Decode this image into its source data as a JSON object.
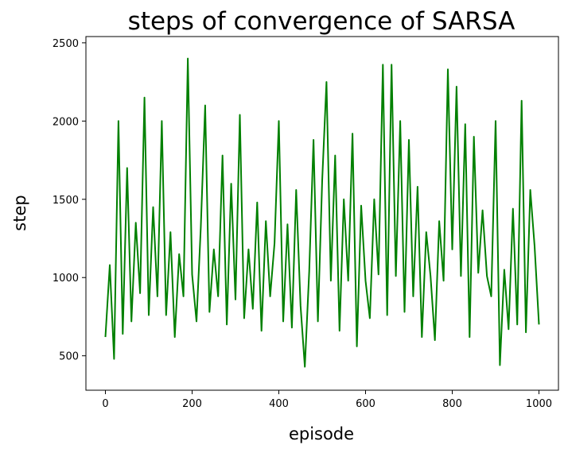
{
  "chart_data": {
    "type": "line",
    "title": "steps of convergence of SARSA",
    "xlabel": "episode",
    "ylabel": "step",
    "xlim": [
      -45,
      1045
    ],
    "ylim": [
      280,
      2540
    ],
    "xticks": [
      0,
      200,
      400,
      600,
      800,
      1000
    ],
    "yticks": [
      500,
      1000,
      1500,
      2000,
      2500
    ],
    "grid": false,
    "line_color": "#008000",
    "x": [
      0,
      10,
      20,
      30,
      40,
      50,
      60,
      70,
      80,
      90,
      100,
      110,
      120,
      130,
      140,
      150,
      160,
      170,
      180,
      190,
      200,
      210,
      220,
      230,
      240,
      250,
      260,
      270,
      280,
      290,
      300,
      310,
      320,
      330,
      340,
      350,
      360,
      370,
      380,
      390,
      400,
      410,
      420,
      430,
      440,
      450,
      460,
      470,
      480,
      490,
      500,
      510,
      520,
      530,
      540,
      550,
      560,
      570,
      580,
      590,
      600,
      610,
      620,
      630,
      640,
      650,
      660,
      670,
      680,
      690,
      700,
      710,
      720,
      730,
      740,
      750,
      760,
      770,
      780,
      790,
      800,
      810,
      820,
      830,
      840,
      850,
      860,
      870,
      880,
      890,
      900,
      910,
      920,
      930,
      940,
      950,
      960,
      970,
      980,
      990,
      1000
    ],
    "values": [
      620,
      1080,
      480,
      2000,
      640,
      1700,
      720,
      1350,
      900,
      2150,
      760,
      1450,
      880,
      2000,
      760,
      1290,
      620,
      1150,
      880,
      2400,
      1020,
      720,
      1320,
      2100,
      780,
      1180,
      880,
      1780,
      700,
      1600,
      860,
      2040,
      740,
      1180,
      800,
      1480,
      660,
      1360,
      880,
      1220,
      2000,
      720,
      1340,
      680,
      1560,
      820,
      430,
      1040,
      1880,
      720,
      1620,
      2250,
      980,
      1780,
      660,
      1500,
      980,
      1920,
      560,
      1460,
      980,
      740,
      1500,
      1020,
      2360,
      760,
      2360,
      1010,
      2000,
      780,
      1880,
      880,
      1580,
      620,
      1290,
      1010,
      600,
      1360,
      980,
      2330,
      1180,
      2220,
      1010,
      1980,
      620,
      1900,
      1030,
      1430,
      1010,
      880,
      2000,
      440,
      1050,
      670,
      1440,
      700,
      2130,
      650,
      1560,
      1200,
      700
    ]
  }
}
